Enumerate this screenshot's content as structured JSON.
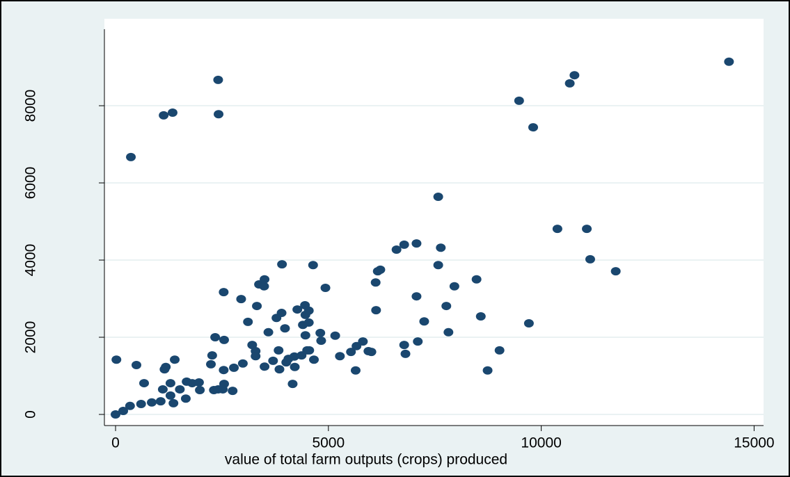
{
  "chart_data": {
    "type": "scatter",
    "x_label": "value of total farm outputs (crops) produced",
    "color": "#1a476f",
    "grid": true,
    "xlim": [
      -262,
      15222
    ],
    "ylim": [
      -288,
      10253
    ],
    "xticks": [
      0,
      5000,
      10000,
      15000
    ],
    "yticks": [
      0,
      2000,
      4000,
      6000,
      8000
    ],
    "x": [
      0,
      180,
      340,
      600,
      850,
      1060,
      1360,
      1650,
      1290,
      1110,
      1290,
      1510,
      1670,
      1800,
      1980,
      1960,
      2310,
      2410,
      2550,
      2520,
      2750,
      670,
      20,
      490,
      1150,
      1180,
      1390,
      2240,
      2270,
      2540,
      2780,
      2990,
      2340,
      2550,
      2540,
      2950,
      3110,
      3210,
      3290,
      3290,
      3320,
      3370,
      3490,
      3500,
      3500,
      3590,
      3700,
      3780,
      3830,
      3850,
      3900,
      3910,
      3980,
      4010,
      4060,
      4160,
      4200,
      4210,
      4270,
      4370,
      4400,
      4450,
      4460,
      4460,
      4540,
      4540,
      4500,
      4550,
      4640,
      4660,
      4830,
      4810,
      4930,
      5160,
      5270,
      5530,
      5640,
      5660,
      5810,
      5940,
      6010,
      6110,
      6120,
      6160,
      6220,
      6600,
      6780,
      6780,
      6810,
      7070,
      7070,
      7100,
      7250,
      7580,
      7580,
      7640,
      7770,
      7820,
      7960,
      8480,
      8580,
      8740,
      9020,
      9480,
      9710,
      9810,
      10380,
      10670,
      10780,
      11070,
      11150,
      11750,
      14410,
      360,
      1130,
      1340,
      2410,
      2420
    ],
    "values": [
      0,
      90,
      220,
      270,
      310,
      340,
      290,
      410,
      490,
      650,
      810,
      650,
      850,
      810,
      630,
      830,
      630,
      650,
      790,
      650,
      610,
      810,
      1420,
      1280,
      1170,
      1230,
      1420,
      1300,
      1530,
      1150,
      1210,
      1320,
      2000,
      1930,
      3170,
      2990,
      2400,
      1800,
      1640,
      1510,
      2810,
      3370,
      3320,
      3500,
      1240,
      2130,
      1390,
      2500,
      1660,
      1170,
      2630,
      3890,
      2230,
      1350,
      1440,
      790,
      1500,
      1230,
      2720,
      1530,
      2320,
      2830,
      2580,
      2050,
      2380,
      2690,
      1660,
      1660,
      3870,
      1420,
      1910,
      2110,
      3280,
      2040,
      1510,
      1620,
      1140,
      1770,
      1890,
      1640,
      1620,
      3420,
      2700,
      3710,
      3750,
      4270,
      4400,
      1800,
      1570,
      4430,
      3060,
      1890,
      2410,
      3870,
      5640,
      4320,
      2810,
      2130,
      3320,
      3500,
      2540,
      1140,
      1660,
      8130,
      2360,
      7440,
      4810,
      8580,
      8790,
      4810,
      4020,
      3710,
      9140,
      6670,
      7750,
      7820,
      8670,
      7780
    ]
  }
}
